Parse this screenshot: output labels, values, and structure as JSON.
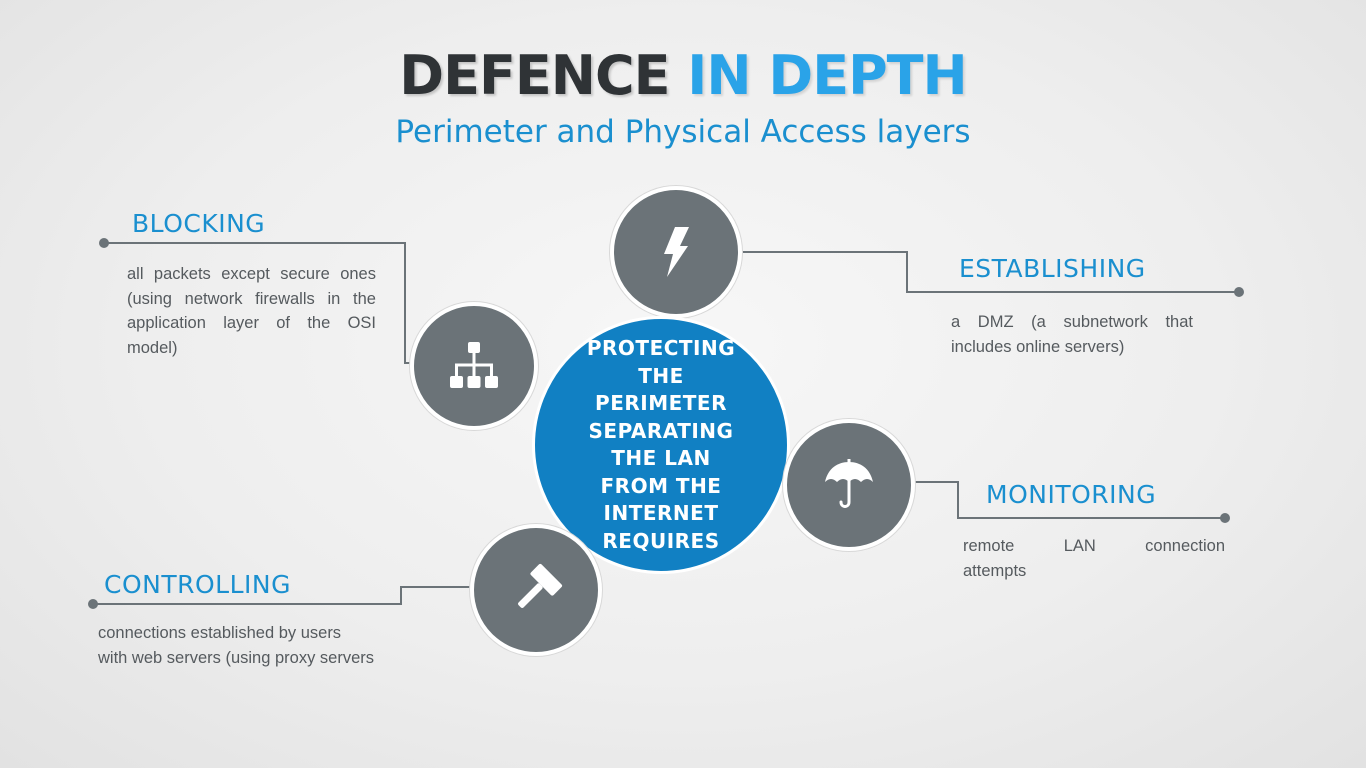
{
  "title": {
    "part1": "DEFENCE",
    "part2": "IN DEPTH"
  },
  "subtitle": "Perimeter and Physical Access layers",
  "center": {
    "text": "PROTECTING THE PERIMETER SEPARATING THE LAN FROM THE INTERNET REQUIRES"
  },
  "colors": {
    "accent": "#1a8fcf",
    "center_circle": "#1180c3",
    "node_circle": "#6b7378",
    "title_dark": "#2f3336",
    "title_blue": "#2aa3e8"
  },
  "items": {
    "blocking": {
      "heading": "BLOCKING",
      "lines": [
        "all packets except secure ones",
        "(using network firewalls in the",
        "application layer of the OSI",
        "model)"
      ],
      "icon": "hierarchy-icon"
    },
    "establishing": {
      "heading": "ESTABLISHING",
      "lines": [
        "a DMZ (a subnetwork that",
        "includes online servers)"
      ],
      "icon": "lightning-icon"
    },
    "monitoring": {
      "heading": "MONITORING",
      "lines": [
        "remote LAN connection",
        "attempts"
      ],
      "icon": "umbrella-icon"
    },
    "controlling": {
      "heading": "CONTROLLING",
      "lines": [
        "connections established by users",
        "with web servers (using proxy servers"
      ],
      "icon": "gavel-icon"
    }
  }
}
